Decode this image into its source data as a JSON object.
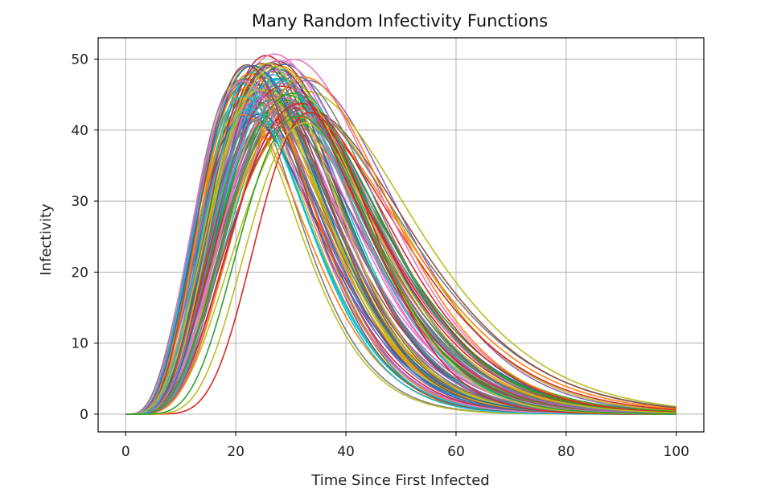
{
  "chart_data": {
    "type": "line",
    "title": "Many Random Infectivity Functions",
    "xlabel": "Time Since First Infected",
    "ylabel": "Infectivity",
    "xlim": [
      -5,
      105
    ],
    "ylim": [
      -2.5,
      53
    ],
    "xticks": [
      0,
      20,
      40,
      60,
      80,
      100
    ],
    "yticks": [
      0,
      10,
      20,
      30,
      40,
      50
    ],
    "grid": true,
    "legend": "none",
    "x_range": [
      0,
      100
    ],
    "series_count": 100,
    "curve_shape": "gamma-like density scaled to peak",
    "series": [
      {
        "peak_x": 20.5,
        "peak_y": 47.0,
        "color": "#7f7f7f"
      },
      {
        "peak_x": 21.5,
        "peak_y": 47.2,
        "color": "#9467bd"
      },
      {
        "peak_x": 22.0,
        "peak_y": 45.0,
        "color": "#bcbd22"
      },
      {
        "peak_x": 23.0,
        "peak_y": 48.0,
        "color": "#2ca02c"
      },
      {
        "peak_x": 24.0,
        "peak_y": 48.5,
        "color": "#1f77b4"
      },
      {
        "peak_x": 25.5,
        "peak_y": 50.5,
        "color": "#d62728"
      },
      {
        "peak_x": 27.0,
        "peak_y": 50.7,
        "color": "#e377c2"
      },
      {
        "peak_x": 26.5,
        "peak_y": 49.5,
        "color": "#17becf"
      },
      {
        "peak_x": 28.0,
        "peak_y": 49.0,
        "color": "#ff7f0e"
      },
      {
        "peak_x": 33.0,
        "peak_y": 47.0,
        "color": "#9467bd"
      },
      {
        "peak_x": 33.5,
        "peak_y": 42.5,
        "color": "#bcbd22"
      },
      {
        "peak_x": 32.0,
        "peak_y": 42.0,
        "color": "#d62728"
      },
      {
        "peak_x": 25.0,
        "peak_y": 43.5,
        "color": "#2ca02c"
      },
      {
        "peak_x": 24.5,
        "peak_y": 45.5,
        "color": "#8c564b"
      },
      {
        "peak_x": 26.0,
        "peak_y": 46.5,
        "color": "#17becf"
      },
      {
        "peak_x": 29.0,
        "peak_y": 44.5,
        "color": "#1f77b4"
      },
      {
        "peak_x": 23.5,
        "peak_y": 44.0,
        "color": "#ff7f0e"
      },
      {
        "peak_x": 27.5,
        "peak_y": 45.0,
        "color": "#e377c2"
      },
      {
        "peak_x": 30.0,
        "peak_y": 46.0,
        "color": "#7f7f7f"
      },
      {
        "peak_x": 21.0,
        "peak_y": 43.0,
        "color": "#bcbd22"
      },
      {
        "peak_x": 22.5,
        "peak_y": 41.5,
        "color": "#d62728"
      },
      {
        "peak_x": 28.5,
        "peak_y": 43.0,
        "color": "#2ca02c"
      },
      {
        "peak_x": 31.0,
        "peak_y": 44.0,
        "color": "#17becf"
      },
      {
        "peak_x": 26.0,
        "peak_y": 42.5,
        "color": "#9467bd"
      },
      {
        "peak_x": 24.0,
        "peak_y": 46.5,
        "color": "#8c564b"
      }
    ]
  }
}
